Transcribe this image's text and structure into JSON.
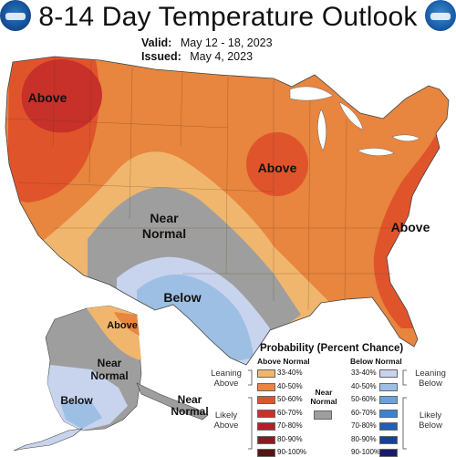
{
  "header": {
    "title": "8-14 Day Temperature Outlook",
    "valid_label": "Valid:",
    "valid_value": "May 12 - 18, 2023",
    "issued_label": "Issued:",
    "issued_value": "May 4, 2023"
  },
  "map": {
    "labels": {
      "above_northwest": "Above",
      "above_central": "Above",
      "above_east": "Above",
      "near_normal_south": "Near Normal",
      "below_texas": "Below",
      "above_alaska": "Above",
      "near_normal_alaska": "Near Normal",
      "below_alaska": "Below",
      "near_normal_aleutians": "Near Normal"
    },
    "colors": {
      "above_33_40": "#f0b66e",
      "above_40_50": "#e8853e",
      "above_50_60": "#e0542c",
      "above_60_70": "#c8302a",
      "near_normal": "#9e9e9e",
      "below_33_40": "#c8d3ee",
      "below_40_50": "#9dbfe4"
    }
  },
  "legend": {
    "title": "Probability (Percent Chance)",
    "above_header": "Above Normal",
    "below_header": "Below Normal",
    "near_normal_label": "Near Normal",
    "leaning_above": "Leaning Above",
    "likely_above": "Likely Above",
    "leaning_below": "Leaning Below",
    "likely_below": "Likely Below",
    "above_bins": [
      {
        "label": "33-40%",
        "color": "#f0b66e"
      },
      {
        "label": "40-50%",
        "color": "#e8853e"
      },
      {
        "label": "50-60%",
        "color": "#e0542c"
      },
      {
        "label": "60-70%",
        "color": "#c8302a"
      },
      {
        "label": "70-80%",
        "color": "#b2202a"
      },
      {
        "label": "80-90%",
        "color": "#8c1a1e"
      },
      {
        "label": "90-100%",
        "color": "#5a1212"
      }
    ],
    "below_bins": [
      {
        "label": "33-40%",
        "color": "#c8d3ee"
      },
      {
        "label": "40-50%",
        "color": "#9dbfe4"
      },
      {
        "label": "50-60%",
        "color": "#6aa2da"
      },
      {
        "label": "60-70%",
        "color": "#3c82cc"
      },
      {
        "label": "70-80%",
        "color": "#1e5fb8"
      },
      {
        "label": "80-90%",
        "color": "#17409a"
      },
      {
        "label": "90-100%",
        "color": "#1a1a6e"
      }
    ],
    "near_normal_color": "#9e9e9e"
  }
}
